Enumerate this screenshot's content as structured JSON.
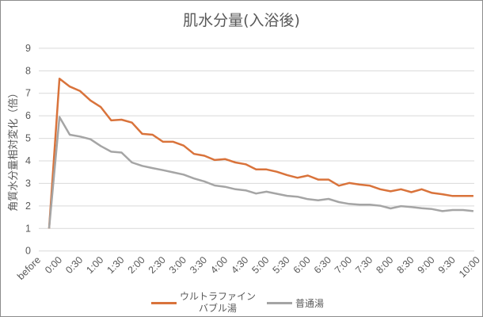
{
  "chart_data": {
    "type": "line",
    "title": "肌水分量(入浴後)",
    "xlabel": "",
    "ylabel": "角質水分量相対変化（倍）",
    "ylim": [
      0,
      9
    ],
    "yticks": [
      0,
      1,
      2,
      3,
      4,
      5,
      6,
      7,
      8,
      9
    ],
    "grid": true,
    "legend_position": "bottom",
    "categories": [
      "before",
      "0:00",
      "0:15",
      "0:30",
      "0:45",
      "1:00",
      "1:15",
      "1:30",
      "1:45",
      "2:00",
      "2:15",
      "2:30",
      "2:45",
      "3:00",
      "3:15",
      "3:30",
      "3:45",
      "4:00",
      "4:15",
      "4:30",
      "4:45",
      "5:00",
      "5:15",
      "5:30",
      "5:45",
      "6:00",
      "6:15",
      "6:30",
      "6:45",
      "7:00",
      "7:15",
      "7:30",
      "7:45",
      "8:00",
      "8:15",
      "8:30",
      "8:45",
      "9:00",
      "9:15",
      "9:30",
      "9:45",
      "10:00"
    ],
    "tick_labels": [
      "before",
      "0:00",
      "0:30",
      "1:00",
      "1:30",
      "2:00",
      "2:30",
      "3:00",
      "3:30",
      "4:00",
      "4:30",
      "5:00",
      "5:30",
      "6:00",
      "6:30",
      "7:00",
      "7:30",
      "8:00",
      "8:30",
      "9:00",
      "9:30",
      "10:00"
    ],
    "series": [
      {
        "name": "ウルトラファインバブル湯",
        "name_lines": [
          "ウルトラファイン",
          "バブル湯"
        ],
        "color": "#d9733b",
        "values": [
          1,
          7.65,
          7.3,
          7.1,
          6.68,
          6.39,
          5.8,
          5.83,
          5.7,
          5.2,
          5.16,
          4.85,
          4.85,
          4.68,
          4.31,
          4.23,
          4.04,
          4.08,
          3.93,
          3.85,
          3.62,
          3.62,
          3.52,
          3.37,
          3.25,
          3.35,
          3.17,
          3.17,
          2.9,
          3.02,
          2.95,
          2.9,
          2.74,
          2.65,
          2.74,
          2.61,
          2.74,
          2.58,
          2.52,
          2.44,
          2.44,
          2.44
        ]
      },
      {
        "name": "普通湯",
        "color": "#a5a5a5",
        "values": [
          1,
          5.95,
          5.16,
          5.08,
          4.96,
          4.66,
          4.41,
          4.37,
          3.93,
          3.78,
          3.68,
          3.59,
          3.49,
          3.39,
          3.22,
          3.09,
          2.91,
          2.85,
          2.74,
          2.69,
          2.55,
          2.63,
          2.54,
          2.45,
          2.41,
          2.3,
          2.25,
          2.31,
          2.17,
          2.09,
          2.06,
          2.06,
          2.01,
          1.89,
          1.99,
          1.95,
          1.9,
          1.86,
          1.77,
          1.82,
          1.82,
          1.77
        ]
      }
    ]
  }
}
